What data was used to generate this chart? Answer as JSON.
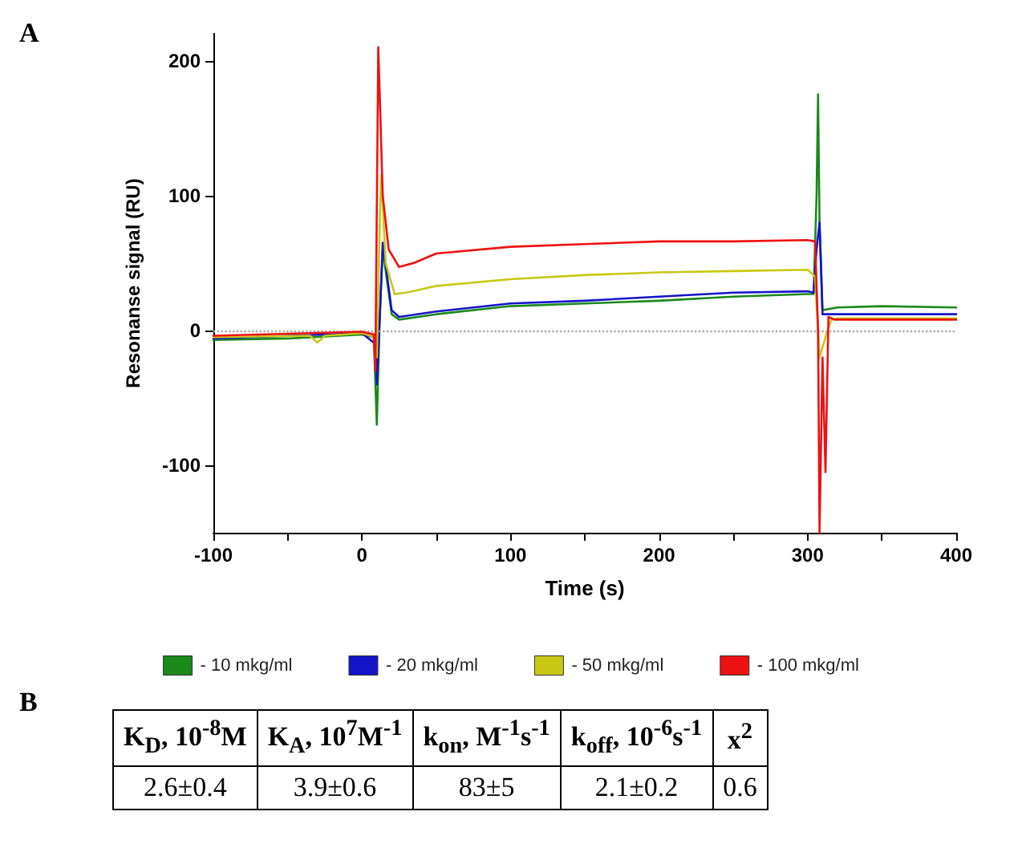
{
  "chart_data": [
    {
      "type": "line",
      "annotations": [
        "A"
      ],
      "xlabel": "Time (s)",
      "ylabel": "Resonanse signal (RU)",
      "xlim": [
        -100,
        400
      ],
      "xticks": [
        -100,
        {
          "value": -50,
          "label": null
        },
        0,
        {
          "value": 50,
          "label": null
        },
        100,
        {
          "value": 150,
          "label": null
        },
        200,
        {
          "value": 250,
          "label": null
        },
        300,
        {
          "value": 350,
          "label": null
        },
        400
      ],
      "ylim": [
        -150,
        220
      ],
      "yticks": [
        -100,
        0,
        100,
        200
      ],
      "grid": false,
      "legend": "bottom",
      "marker": "none",
      "line_style": "solid",
      "ref_lines": [
        {
          "axis": "y",
          "value": 0,
          "color": "#aaaaaa",
          "line_style": "dotted"
        }
      ],
      "series": [
        {
          "name": "- 10 mkg/ml",
          "color": "#1a8a1a",
          "x": [
            -100,
            -50,
            0,
            8,
            10,
            12,
            14,
            20,
            25,
            50,
            100,
            150,
            200,
            250,
            300,
            304,
            306,
            307,
            308,
            310,
            320,
            350,
            400
          ],
          "values": [
            -7,
            -6,
            -3,
            -5,
            -70,
            10,
            60,
            12,
            8,
            12,
            18,
            20,
            22,
            25,
            27,
            27,
            100,
            175,
            80,
            15,
            17,
            18,
            17
          ]
        },
        {
          "name": "- 20 mkg/ml",
          "color": "#1414c8",
          "x": [
            -100,
            0,
            9,
            10,
            12,
            14,
            20,
            25,
            50,
            100,
            150,
            200,
            250,
            300,
            304,
            306,
            308,
            310,
            320,
            400
          ],
          "values": [
            -6,
            -2,
            -10,
            -40,
            10,
            65,
            15,
            10,
            14,
            20,
            22,
            25,
            28,
            29,
            28,
            60,
            80,
            12,
            12,
            12
          ]
        },
        {
          "name": "- 50 mkg/ml",
          "color": "#c8c814",
          "x": [
            -100,
            -35,
            -30,
            -25,
            0,
            9,
            10,
            12,
            13,
            16,
            22,
            30,
            50,
            100,
            150,
            200,
            250,
            300,
            305,
            308,
            312,
            316,
            320,
            400
          ],
          "values": [
            -5,
            -4,
            -9,
            -4,
            -2,
            -5,
            -20,
            80,
            115,
            50,
            27,
            28,
            33,
            38,
            41,
            43,
            44,
            45,
            40,
            -20,
            -5,
            8,
            9,
            9
          ]
        },
        {
          "name": "- 100 mkg/ml",
          "color": "#ee1111",
          "x": [
            -100,
            0,
            8,
            9,
            11,
            14,
            18,
            25,
            35,
            50,
            100,
            150,
            200,
            250,
            300,
            305,
            307,
            308,
            310,
            312,
            314,
            318,
            400
          ],
          "values": [
            -4,
            -1,
            -3,
            -30,
            210,
            100,
            60,
            47,
            50,
            57,
            62,
            64,
            66,
            66,
            67,
            66,
            0,
            -150,
            -20,
            -105,
            10,
            8,
            8
          ]
        }
      ]
    },
    {
      "type": "other",
      "annotations": [
        "B"
      ],
      "categories": [
        "K$_{D}$, 10$^{-8}$M",
        "K$_{A}$, 10$^{7}$M$^{-1}$",
        "k$_{on}$, M$^{-1}$s$^{-1}$",
        "k$_{off}$, 10$^{-6}$s$^{-1}$",
        "x$^{2}$"
      ],
      "value_labels": [
        "2.6±0.4",
        "3.9±0.6",
        "83±5",
        "2.1±0.2",
        "0.6"
      ]
    }
  ]
}
